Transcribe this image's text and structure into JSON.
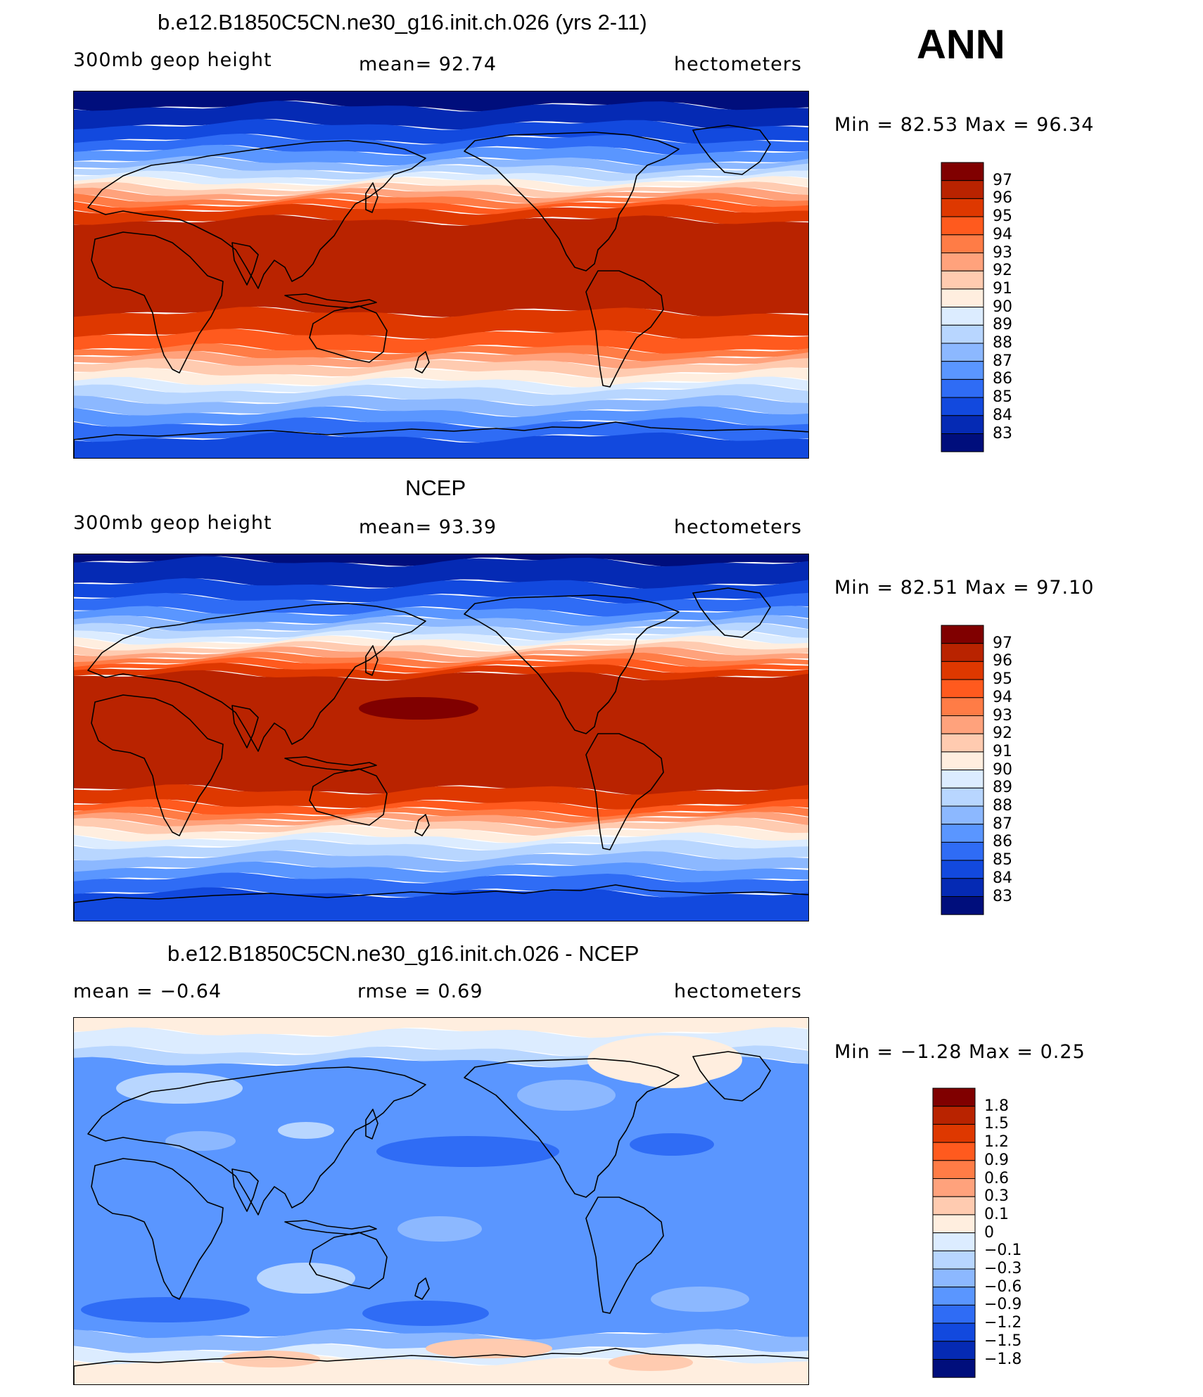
{
  "season": "ANN",
  "units": "hectometers",
  "panels": [
    {
      "id": "model",
      "title": "b.e12.B1850C5CN.ne30_g16.init.ch.026 (yrs 2-11)",
      "left_text": "300mb  geop  height",
      "center_text": "mean=   92.74",
      "right_text": "hectometers",
      "stats_text": "Min  =    82.53  Max  =    96.34",
      "levels": [
        "97",
        "96",
        "95",
        "94",
        "93",
        "92",
        "91",
        "90",
        "89",
        "88",
        "87",
        "86",
        "85",
        "84",
        "83"
      ],
      "colors": [
        "#800000",
        "#b92300",
        "#de3800",
        "#ff5a1e",
        "#ff7c46",
        "#ffa27c",
        "#ffcbb0",
        "#ffeedf",
        "#dcecff",
        "#b8d6ff",
        "#8cb8ff",
        "#5a96ff",
        "#2f6cf5",
        "#1249de",
        "#052ab4",
        "#000e7c"
      ],
      "zones": [
        [
          "#000e7c",
          0.04
        ],
        [
          "#052ab4",
          0.09
        ],
        [
          "#1249de",
          0.13
        ],
        [
          "#2f6cf5",
          0.16
        ],
        [
          "#5a96ff",
          0.19
        ],
        [
          "#8cb8ff",
          0.21
        ],
        [
          "#b8d6ff",
          0.23
        ],
        [
          "#dcecff",
          0.245
        ],
        [
          "#ffeedf",
          0.26
        ],
        [
          "#ffcbb0",
          0.275
        ],
        [
          "#ffa27c",
          0.29
        ],
        [
          "#ff7c46",
          0.305
        ],
        [
          "#ff5a1e",
          0.32
        ],
        [
          "#de3800",
          0.35
        ],
        [
          "#b92300",
          0.6
        ],
        [
          "#de3800",
          0.66
        ],
        [
          "#ff5a1e",
          0.7
        ],
        [
          "#ff7c46",
          0.72
        ],
        [
          "#ffa27c",
          0.74
        ],
        [
          "#ffcbb0",
          0.765
        ],
        [
          "#ffeedf",
          0.79
        ],
        [
          "#dcecff",
          0.81
        ],
        [
          "#b8d6ff",
          0.84
        ],
        [
          "#8cb8ff",
          0.87
        ],
        [
          "#5a96ff",
          0.9
        ],
        [
          "#2f6cf5",
          0.94
        ],
        [
          "#1249de",
          1.0
        ]
      ]
    },
    {
      "id": "obs",
      "title": "NCEP",
      "left_text": "300mb  geop  height",
      "center_text": "mean=   93.39",
      "right_text": "hectometers",
      "stats_text": "Min  =    82.51  Max  =    97.10",
      "levels": [
        "97",
        "96",
        "95",
        "94",
        "93",
        "92",
        "91",
        "90",
        "89",
        "88",
        "87",
        "86",
        "85",
        "84",
        "83"
      ],
      "colors": [
        "#800000",
        "#b92300",
        "#de3800",
        "#ff5a1e",
        "#ff7c46",
        "#ffa27c",
        "#ffcbb0",
        "#ffeedf",
        "#dcecff",
        "#b8d6ff",
        "#8cb8ff",
        "#5a96ff",
        "#2f6cf5",
        "#1249de",
        "#052ab4",
        "#000e7c"
      ],
      "zones": [
        [
          "#000e7c",
          0.02
        ],
        [
          "#052ab4",
          0.08
        ],
        [
          "#1249de",
          0.12
        ],
        [
          "#2f6cf5",
          0.155
        ],
        [
          "#5a96ff",
          0.18
        ],
        [
          "#8cb8ff",
          0.2
        ],
        [
          "#b8d6ff",
          0.22
        ],
        [
          "#dcecff",
          0.235
        ],
        [
          "#ffeedf",
          0.25
        ],
        [
          "#ffcbb0",
          0.265
        ],
        [
          "#ffa27c",
          0.28
        ],
        [
          "#ff7c46",
          0.295
        ],
        [
          "#ff5a1e",
          0.31
        ],
        [
          "#de3800",
          0.33
        ],
        [
          "#b92300",
          0.64
        ],
        [
          "#de3800",
          0.68
        ],
        [
          "#ff5a1e",
          0.7
        ],
        [
          "#ff7c46",
          0.715
        ],
        [
          "#ffa27c",
          0.73
        ],
        [
          "#ffcbb0",
          0.75
        ],
        [
          "#ffeedf",
          0.77
        ],
        [
          "#dcecff",
          0.79
        ],
        [
          "#b8d6ff",
          0.82
        ],
        [
          "#8cb8ff",
          0.85
        ],
        [
          "#5a96ff",
          0.88
        ],
        [
          "#2f6cf5",
          0.92
        ],
        [
          "#1249de",
          1.0
        ]
      ],
      "max_blob": true
    },
    {
      "id": "diff",
      "title": "b.e12.B1850C5CN.ne30_g16.init.ch.026 - NCEP",
      "left_text": "mean  =    −0.64",
      "center_text": "rmse  =      0.69",
      "right_text": "hectometers",
      "stats_text": "Min  =    −1.28  Max  =      0.25",
      "levels": [
        "1.8",
        "1.5",
        "1.2",
        "0.9",
        "0.6",
        "0.3",
        "0.1",
        "0",
        "−0.1",
        "−0.3",
        "−0.6",
        "−0.9",
        "−1.2",
        "−1.5",
        "−1.8"
      ],
      "colors": [
        "#800000",
        "#b92300",
        "#de3800",
        "#ff5a1e",
        "#ff7c46",
        "#ffa27c",
        "#ffcbb0",
        "#ffeedf",
        "#dcecff",
        "#b8d6ff",
        "#8cb8ff",
        "#5a96ff",
        "#2f6cf5",
        "#1249de",
        "#052ab4",
        "#000e7c"
      ],
      "zones": [
        [
          "#ffeedf",
          0.04
        ],
        [
          "#dcecff",
          0.09
        ],
        [
          "#b8d6ff",
          0.12
        ],
        [
          "#5a96ff",
          0.86
        ],
        [
          "#8cb8ff",
          0.9
        ],
        [
          "#dcecff",
          0.93
        ],
        [
          "#ffeedf",
          1.0
        ]
      ],
      "diff_blobs": true
    }
  ],
  "chart_data": [
    {
      "type": "heatmap",
      "title": "b.e12.B1850C5CN.ne30_g16.init.ch.026 (yrs 2-11)",
      "variable": "300mb geop height",
      "units": "hectometers",
      "mean": 92.74,
      "min": 82.53,
      "max": 96.34,
      "contour_levels": [
        83,
        84,
        85,
        86,
        87,
        88,
        89,
        90,
        91,
        92,
        93,
        94,
        95,
        96,
        97
      ]
    },
    {
      "type": "heatmap",
      "title": "NCEP",
      "variable": "300mb geop height",
      "units": "hectometers",
      "mean": 93.39,
      "min": 82.51,
      "max": 97.1,
      "contour_levels": [
        83,
        84,
        85,
        86,
        87,
        88,
        89,
        90,
        91,
        92,
        93,
        94,
        95,
        96,
        97
      ]
    },
    {
      "type": "heatmap",
      "title": "b.e12.B1850C5CN.ne30_g16.init.ch.026 - NCEP",
      "units": "hectometers",
      "mean": -0.64,
      "rmse": 0.69,
      "min": -1.28,
      "max": 0.25,
      "contour_levels": [
        -1.8,
        -1.5,
        -1.2,
        -0.9,
        -0.6,
        -0.3,
        -0.1,
        0,
        0.1,
        0.3,
        0.6,
        0.9,
        1.2,
        1.5,
        1.8
      ]
    }
  ]
}
